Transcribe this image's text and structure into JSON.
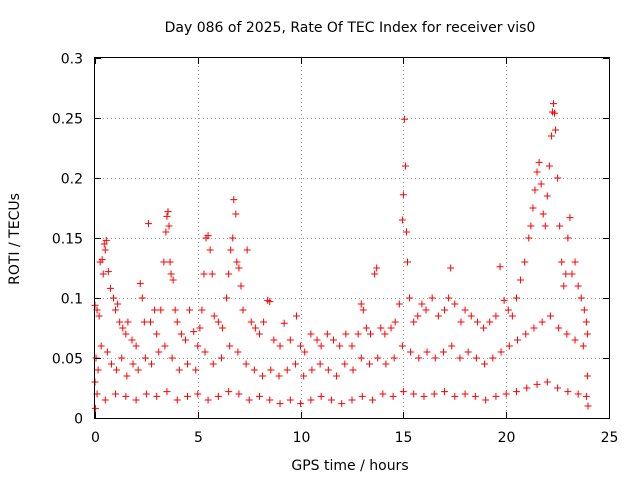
{
  "chart_data": {
    "type": "scatter",
    "title": "Day 086 of 2025, Rate Of TEC Index for receiver vis0",
    "xlabel": "GPS time / hours",
    "ylabel": "ROTI / TECUs",
    "xlim": [
      0,
      25
    ],
    "ylim": [
      0,
      0.3
    ],
    "xticks": [
      0,
      5,
      10,
      15,
      20,
      25
    ],
    "xtick_labels": [
      "0",
      "5",
      "10",
      "15",
      "20",
      "25"
    ],
    "yticks": [
      0,
      0.05,
      0.1,
      0.15,
      0.2,
      0.25,
      0.3
    ],
    "ytick_labels": [
      "0",
      "0.05",
      "0.1",
      "0.15",
      "0.2",
      "0.25",
      "0.3"
    ],
    "grid": true,
    "marker": "+",
    "color": "#ff0000",
    "series": [
      {
        "points": [
          [
            0.0,
            0.094
          ],
          [
            0.1,
            0.09
          ],
          [
            0.2,
            0.085
          ],
          [
            0.25,
            0.13
          ],
          [
            0.35,
            0.132
          ],
          [
            0.4,
            0.12
          ],
          [
            0.45,
            0.145
          ],
          [
            0.5,
            0.14
          ],
          [
            0.55,
            0.148
          ],
          [
            0.65,
            0.122
          ],
          [
            0.75,
            0.108
          ],
          [
            0.9,
            0.1
          ],
          [
            1.0,
            0.09
          ],
          [
            1.1,
            0.095
          ],
          [
            1.2,
            0.08
          ],
          [
            1.35,
            0.075
          ],
          [
            1.5,
            0.07
          ],
          [
            1.6,
            0.08
          ],
          [
            1.8,
            0.065
          ],
          [
            2.0,
            0.06
          ],
          [
            2.2,
            0.112
          ],
          [
            2.3,
            0.1
          ],
          [
            2.4,
            0.08
          ],
          [
            2.6,
            0.162
          ],
          [
            2.7,
            0.08
          ],
          [
            2.9,
            0.09
          ],
          [
            3.0,
            0.07
          ],
          [
            3.2,
            0.09
          ],
          [
            3.35,
            0.13
          ],
          [
            3.45,
            0.155
          ],
          [
            3.5,
            0.168
          ],
          [
            3.55,
            0.172
          ],
          [
            3.6,
            0.16
          ],
          [
            3.65,
            0.13
          ],
          [
            3.7,
            0.12
          ],
          [
            3.8,
            0.115
          ],
          [
            3.9,
            0.09
          ],
          [
            4.0,
            0.08
          ],
          [
            4.2,
            0.07
          ],
          [
            4.4,
            0.065
          ],
          [
            4.6,
            0.09
          ],
          [
            4.8,
            0.072
          ],
          [
            5.0,
            0.06
          ],
          [
            5.1,
            0.075
          ],
          [
            5.2,
            0.09
          ],
          [
            5.3,
            0.12
          ],
          [
            5.4,
            0.15
          ],
          [
            5.5,
            0.152
          ],
          [
            5.6,
            0.14
          ],
          [
            5.7,
            0.12
          ],
          [
            5.8,
            0.085
          ],
          [
            6.0,
            0.08
          ],
          [
            6.2,
            0.075
          ],
          [
            6.4,
            0.1
          ],
          [
            6.5,
            0.12
          ],
          [
            6.6,
            0.14
          ],
          [
            6.7,
            0.15
          ],
          [
            6.75,
            0.182
          ],
          [
            6.85,
            0.17
          ],
          [
            6.9,
            0.13
          ],
          [
            7.0,
            0.125
          ],
          [
            7.1,
            0.11
          ],
          [
            7.2,
            0.09
          ],
          [
            7.4,
            0.14
          ],
          [
            7.6,
            0.08
          ],
          [
            7.8,
            0.075
          ],
          [
            8.0,
            0.07
          ],
          [
            8.2,
            0.08
          ],
          [
            8.4,
            0.098
          ],
          [
            8.5,
            0.097
          ],
          [
            8.7,
            0.065
          ],
          [
            9.0,
            0.06
          ],
          [
            9.2,
            0.079
          ],
          [
            9.5,
            0.065
          ],
          [
            9.8,
            0.085
          ],
          [
            10.0,
            0.06
          ],
          [
            10.2,
            0.055
          ],
          [
            10.5,
            0.07
          ],
          [
            10.8,
            0.065
          ],
          [
            11.0,
            0.06
          ],
          [
            11.3,
            0.07
          ],
          [
            11.6,
            0.065
          ],
          [
            11.9,
            0.06
          ],
          [
            12.2,
            0.07
          ],
          [
            12.5,
            0.06
          ],
          [
            12.8,
            0.07
          ],
          [
            12.95,
            0.095
          ],
          [
            13.05,
            0.09
          ],
          [
            13.2,
            0.075
          ],
          [
            13.4,
            0.07
          ],
          [
            13.6,
            0.12
          ],
          [
            13.7,
            0.125
          ],
          [
            13.9,
            0.075
          ],
          [
            14.1,
            0.07
          ],
          [
            14.4,
            0.075
          ],
          [
            14.6,
            0.08
          ],
          [
            14.8,
            0.095
          ],
          [
            14.95,
            0.165
          ],
          [
            15.0,
            0.186
          ],
          [
            15.05,
            0.249
          ],
          [
            15.1,
            0.21
          ],
          [
            15.15,
            0.155
          ],
          [
            15.2,
            0.13
          ],
          [
            15.3,
            0.1
          ],
          [
            15.5,
            0.08
          ],
          [
            15.7,
            0.085
          ],
          [
            15.9,
            0.095
          ],
          [
            16.1,
            0.09
          ],
          [
            16.4,
            0.1
          ],
          [
            16.7,
            0.085
          ],
          [
            17.0,
            0.09
          ],
          [
            17.2,
            0.1
          ],
          [
            17.3,
            0.125
          ],
          [
            17.5,
            0.095
          ],
          [
            17.8,
            0.08
          ],
          [
            18.0,
            0.09
          ],
          [
            18.3,
            0.085
          ],
          [
            18.6,
            0.08
          ],
          [
            18.9,
            0.075
          ],
          [
            19.2,
            0.08
          ],
          [
            19.5,
            0.085
          ],
          [
            19.7,
            0.126
          ],
          [
            19.9,
            0.098
          ],
          [
            20.1,
            0.09
          ],
          [
            20.3,
            0.085
          ],
          [
            20.5,
            0.1
          ],
          [
            20.7,
            0.115
          ],
          [
            20.9,
            0.13
          ],
          [
            21.1,
            0.15
          ],
          [
            21.2,
            0.16
          ],
          [
            21.3,
            0.175
          ],
          [
            21.4,
            0.19
          ],
          [
            21.5,
            0.205
          ],
          [
            21.6,
            0.213
          ],
          [
            21.7,
            0.195
          ],
          [
            21.8,
            0.17
          ],
          [
            21.9,
            0.16
          ],
          [
            22.0,
            0.185
          ],
          [
            22.1,
            0.21
          ],
          [
            22.2,
            0.235
          ],
          [
            22.25,
            0.255
          ],
          [
            22.3,
            0.262
          ],
          [
            22.35,
            0.254
          ],
          [
            22.4,
            0.24
          ],
          [
            22.5,
            0.2
          ],
          [
            22.6,
            0.16
          ],
          [
            22.7,
            0.13
          ],
          [
            22.8,
            0.11
          ],
          [
            22.9,
            0.12
          ],
          [
            23.0,
            0.15
          ],
          [
            23.1,
            0.167
          ],
          [
            23.2,
            0.12
          ],
          [
            23.35,
            0.13
          ],
          [
            23.5,
            0.11
          ],
          [
            23.65,
            0.1
          ],
          [
            23.8,
            0.09
          ],
          [
            23.9,
            0.08
          ],
          [
            23.95,
            0.07
          ],
          [
            0.05,
            0.05
          ],
          [
            0.15,
            0.04
          ],
          [
            0.3,
            0.06
          ],
          [
            0.6,
            0.055
          ],
          [
            0.8,
            0.045
          ],
          [
            1.05,
            0.04
          ],
          [
            1.3,
            0.05
          ],
          [
            1.55,
            0.035
          ],
          [
            1.85,
            0.045
          ],
          [
            2.1,
            0.04
          ],
          [
            2.45,
            0.05
          ],
          [
            2.75,
            0.045
          ],
          [
            3.1,
            0.055
          ],
          [
            3.4,
            0.06
          ],
          [
            3.75,
            0.05
          ],
          [
            4.1,
            0.04
          ],
          [
            4.5,
            0.045
          ],
          [
            4.9,
            0.04
          ],
          [
            5.35,
            0.055
          ],
          [
            5.75,
            0.045
          ],
          [
            6.15,
            0.05
          ],
          [
            6.55,
            0.06
          ],
          [
            6.95,
            0.055
          ],
          [
            7.35,
            0.045
          ],
          [
            7.75,
            0.04
          ],
          [
            8.15,
            0.035
          ],
          [
            8.55,
            0.04
          ],
          [
            8.95,
            0.035
          ],
          [
            9.35,
            0.04
          ],
          [
            9.75,
            0.045
          ],
          [
            10.15,
            0.035
          ],
          [
            10.55,
            0.04
          ],
          [
            10.95,
            0.045
          ],
          [
            11.35,
            0.04
          ],
          [
            11.75,
            0.035
          ],
          [
            12.15,
            0.045
          ],
          [
            12.55,
            0.04
          ],
          [
            12.95,
            0.05
          ],
          [
            13.35,
            0.045
          ],
          [
            13.75,
            0.05
          ],
          [
            14.15,
            0.045
          ],
          [
            14.55,
            0.05
          ],
          [
            14.95,
            0.06
          ],
          [
            15.35,
            0.055
          ],
          [
            15.75,
            0.05
          ],
          [
            16.15,
            0.055
          ],
          [
            16.55,
            0.05
          ],
          [
            16.95,
            0.055
          ],
          [
            17.35,
            0.06
          ],
          [
            17.75,
            0.05
          ],
          [
            18.15,
            0.055
          ],
          [
            18.55,
            0.05
          ],
          [
            18.95,
            0.045
          ],
          [
            19.35,
            0.05
          ],
          [
            19.75,
            0.055
          ],
          [
            20.15,
            0.06
          ],
          [
            20.55,
            0.065
          ],
          [
            20.95,
            0.07
          ],
          [
            21.35,
            0.075
          ],
          [
            21.75,
            0.08
          ],
          [
            22.15,
            0.085
          ],
          [
            22.55,
            0.075
          ],
          [
            22.95,
            0.07
          ],
          [
            23.35,
            0.065
          ],
          [
            23.75,
            0.06
          ],
          [
            0.1,
            0.02
          ],
          [
            0.5,
            0.015
          ],
          [
            1.0,
            0.02
          ],
          [
            1.5,
            0.018
          ],
          [
            2.0,
            0.015
          ],
          [
            2.5,
            0.02
          ],
          [
            3.0,
            0.018
          ],
          [
            3.5,
            0.022
          ],
          [
            4.0,
            0.015
          ],
          [
            4.5,
            0.018
          ],
          [
            5.0,
            0.02
          ],
          [
            5.5,
            0.015
          ],
          [
            6.0,
            0.018
          ],
          [
            6.5,
            0.022
          ],
          [
            7.0,
            0.02
          ],
          [
            7.5,
            0.015
          ],
          [
            8.0,
            0.018
          ],
          [
            8.5,
            0.015
          ],
          [
            9.0,
            0.012
          ],
          [
            9.5,
            0.015
          ],
          [
            10.0,
            0.012
          ],
          [
            10.5,
            0.015
          ],
          [
            11.0,
            0.018
          ],
          [
            11.5,
            0.015
          ],
          [
            12.0,
            0.012
          ],
          [
            12.5,
            0.015
          ],
          [
            13.0,
            0.018
          ],
          [
            13.5,
            0.015
          ],
          [
            14.0,
            0.02
          ],
          [
            14.5,
            0.018
          ],
          [
            15.0,
            0.022
          ],
          [
            15.5,
            0.02
          ],
          [
            16.0,
            0.018
          ],
          [
            16.5,
            0.02
          ],
          [
            17.0,
            0.022
          ],
          [
            17.5,
            0.018
          ],
          [
            18.0,
            0.02
          ],
          [
            18.5,
            0.018
          ],
          [
            19.0,
            0.015
          ],
          [
            19.5,
            0.018
          ],
          [
            20.0,
            0.02
          ],
          [
            20.5,
            0.022
          ],
          [
            21.0,
            0.025
          ],
          [
            21.5,
            0.028
          ],
          [
            22.0,
            0.03
          ],
          [
            22.5,
            0.025
          ],
          [
            23.0,
            0.022
          ],
          [
            23.5,
            0.02
          ],
          [
            23.9,
            0.018
          ],
          [
            0.02,
            0.008
          ],
          [
            23.98,
            0.01
          ],
          [
            0.0,
            0.03
          ],
          [
            23.95,
            0.035
          ]
        ]
      }
    ]
  }
}
